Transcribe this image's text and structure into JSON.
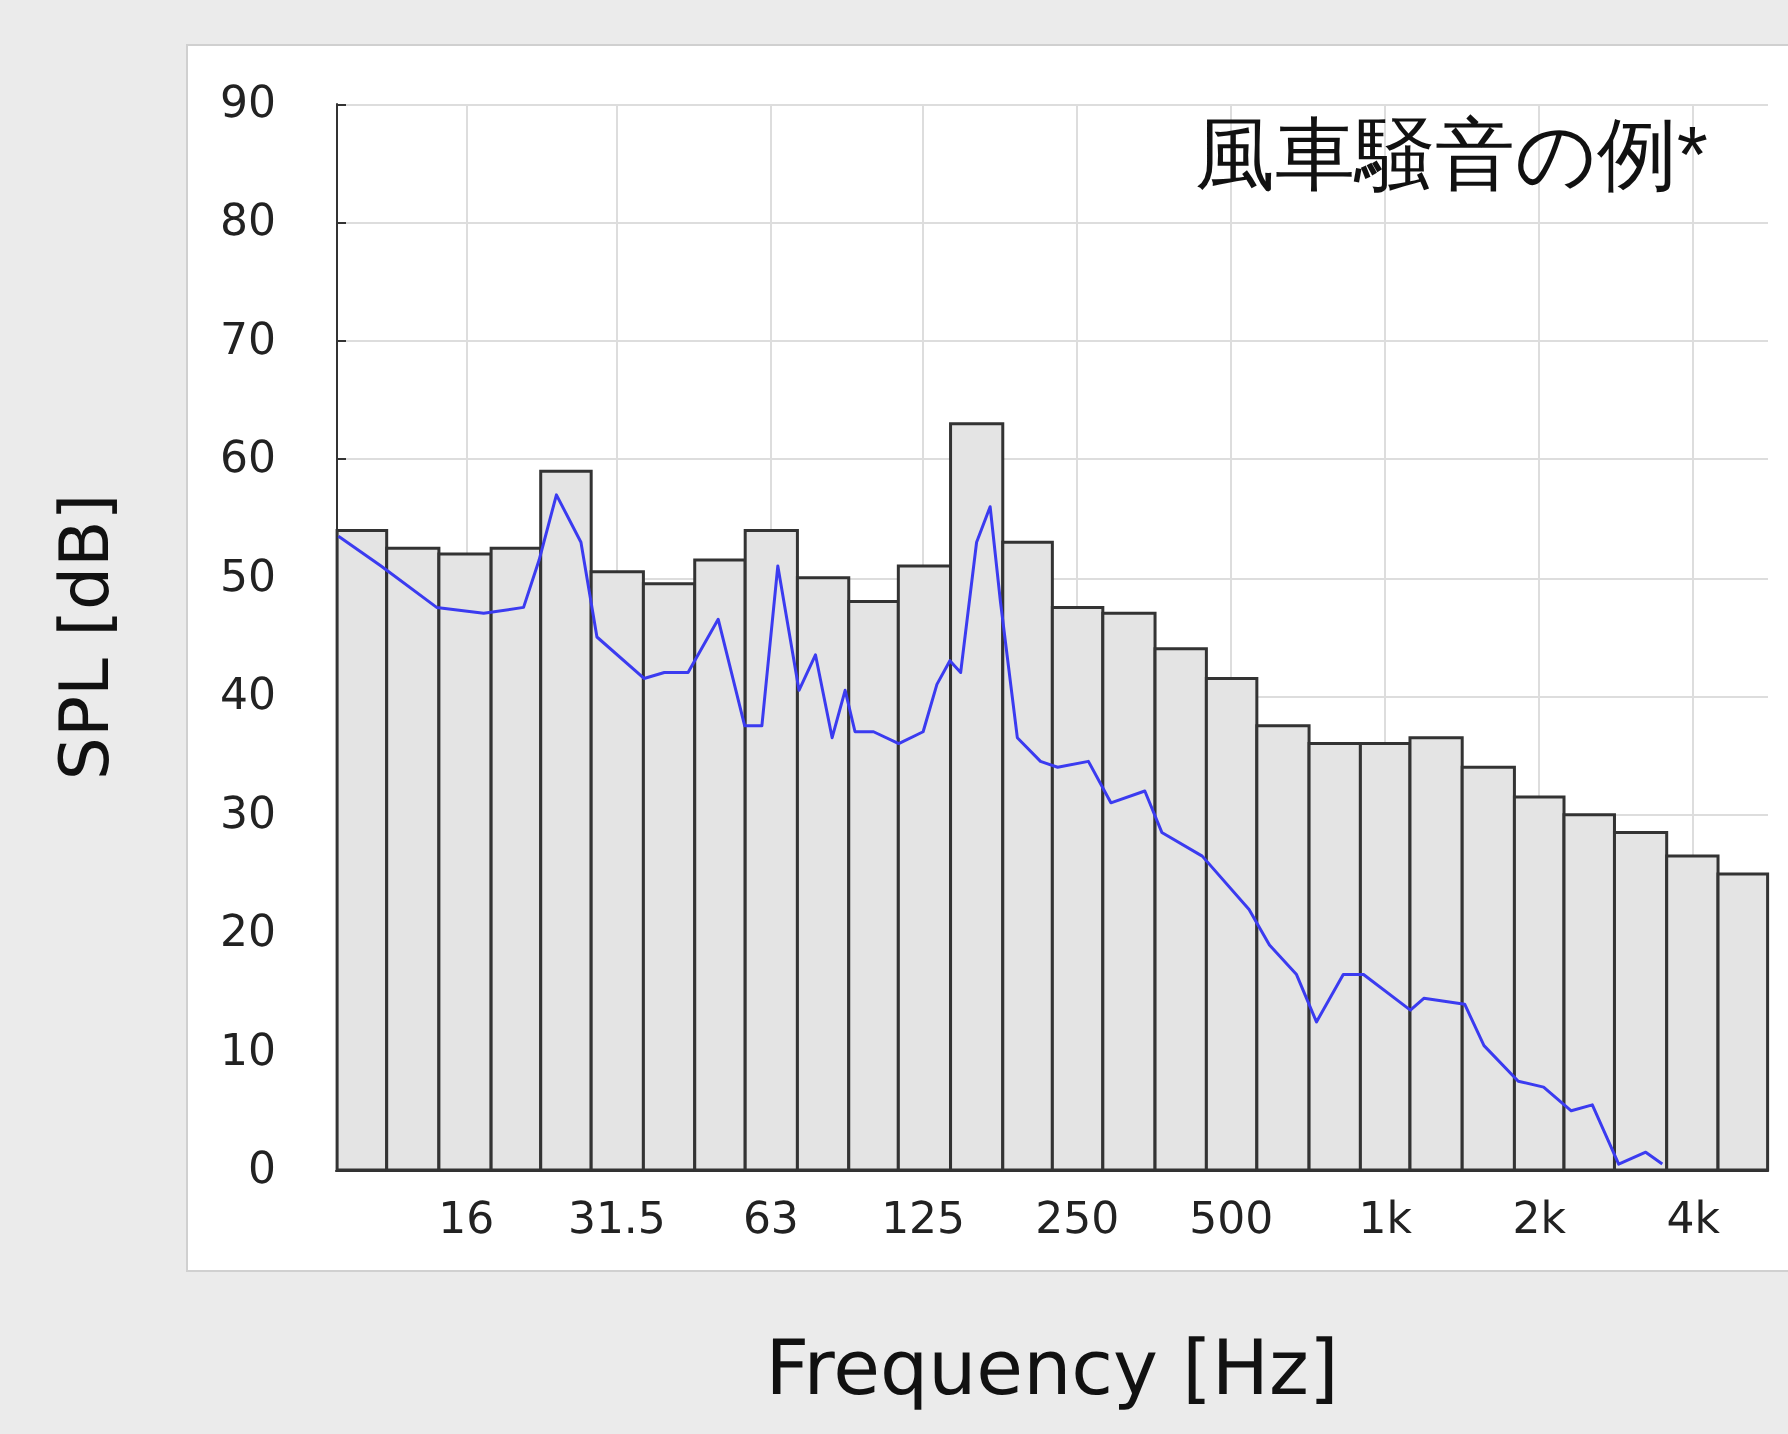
{
  "chart_data": {
    "type": "bar",
    "xlabel": "Frequency [Hz]",
    "ylabel": "SPL [dB]",
    "annotations": [
      "風車騒音の例*"
    ],
    "log": "x",
    "grid": true,
    "xlim": [
      8.9,
      5600
    ],
    "xticks": [
      16,
      31.5,
      63,
      125,
      250,
      500,
      {
        "value": 1000,
        "label": "1k"
      },
      {
        "value": 2000,
        "label": "2k"
      },
      {
        "value": 4000,
        "label": "4k"
      }
    ],
    "ylim": [
      0,
      90
    ],
    "yticks": [
      0,
      10,
      20,
      30,
      40,
      50,
      60,
      70,
      80,
      90
    ],
    "series": [
      {
        "color": "#e4e4e4",
        "x": [
          10,
          12.5,
          16,
          20,
          25,
          31.5,
          40,
          50,
          63,
          80,
          100,
          125,
          160,
          200,
          250,
          315,
          400,
          500,
          630,
          800,
          1000,
          1250,
          1600,
          2000,
          2500,
          3150,
          4000,
          5000
        ],
        "values": [
          54,
          52.5,
          52,
          52.5,
          59,
          50.5,
          49.5,
          51.5,
          54,
          50,
          48,
          51,
          63,
          53,
          47.5,
          47,
          44,
          41.5,
          37.5,
          36,
          36,
          36.5,
          34,
          31.5,
          30,
          28.5,
          26.5,
          25
        ]
      },
      {
        "type": "line",
        "color": "#3b3bf0",
        "x": [
          9,
          10.9,
          14,
          17.3,
          20.7,
          22.2,
          24,
          26.8,
          28.8,
          35.6,
          39,
          43.4,
          49.7,
          56,
          60.5,
          65,
          71.5,
          77,
          83,
          88,
          92,
          100,
          112,
          125,
          133,
          141,
          148,
          159,
          169,
          177,
          191,
          212,
          229,
          263,
          291,
          339,
          366,
          439,
          542,
          594,
          671,
          734,
          828,
          907,
          1120,
          1190,
          1430,
          1560,
          1820,
          2040,
          2310,
          2540,
          2860,
          3230,
          3480
        ],
        "values": [
          53.5,
          51,
          47.5,
          47,
          47.5,
          51.5,
          57,
          53,
          45,
          41.5,
          42,
          42,
          46.5,
          37.5,
          37.5,
          51,
          40.5,
          43.5,
          36.5,
          40.5,
          37,
          37,
          36,
          37,
          41,
          43,
          42,
          53,
          56,
          48,
          36.5,
          34.5,
          34,
          34.5,
          31,
          32,
          28.5,
          26.5,
          22,
          19,
          16.5,
          12.5,
          16.5,
          16.5,
          13.5,
          14.5,
          14,
          10.5,
          7.5,
          7,
          5,
          5.5,
          0.5,
          1.5,
          0.5
        ]
      }
    ]
  }
}
